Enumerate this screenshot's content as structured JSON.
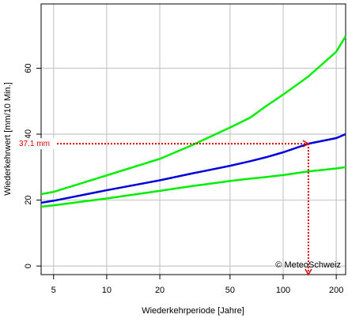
{
  "chart_data": {
    "type": "line",
    "xlabel": "Wiederkehrperiode [Jahre]",
    "ylabel": "Wiederkehrwert [mm/10 Min.]",
    "x": [
      4.25,
      5,
      10,
      20,
      30,
      50,
      65,
      80,
      100,
      139,
      200,
      226
    ],
    "series": [
      {
        "color": "#00ee00",
        "values": [
          21.8,
          22.5,
          27.5,
          32.5,
          36.5,
          42,
          45,
          48.5,
          52,
          57.5,
          65,
          69.7
        ]
      },
      {
        "color": "#0000dd",
        "values": [
          19.2,
          19.8,
          23,
          26,
          28,
          30.4,
          31.8,
          33,
          34.5,
          37.1,
          38.8,
          40
        ]
      },
      {
        "color": "#00ee00",
        "values": [
          18,
          18.4,
          20.5,
          22.8,
          24.2,
          25.8,
          26.5,
          27,
          27.6,
          28.7,
          29.6,
          30
        ]
      }
    ],
    "xscale": "log",
    "xlim": [
      4.25,
      226
    ],
    "xticks": [
      5,
      10,
      20,
      50,
      100,
      200
    ],
    "ylim": [
      -2.6,
      79.5
    ],
    "yticks": [
      0,
      20,
      40,
      60
    ],
    "grid": true,
    "marker": {
      "x": 139,
      "y": 37.1,
      "label": "37.1 mm",
      "color": "#dd0000"
    },
    "credit": "© MeteoSchweiz"
  }
}
